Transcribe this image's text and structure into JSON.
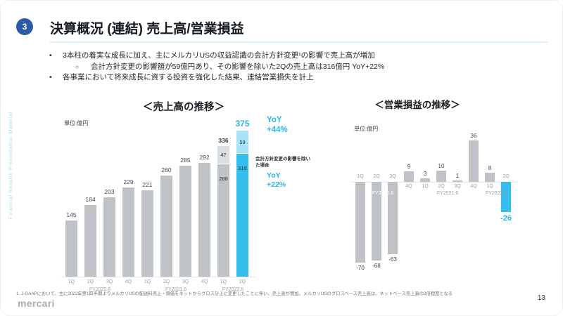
{
  "slide": {
    "badge": "3",
    "title": "決算概況 (連結) 売上高/営業損益",
    "bullets": {
      "b1": "3本柱の着実な成長に加え、主にメルカリUSの収益認識の会計方針変更¹の影響で売上高が増加",
      "b1_sub": "会計方針変更の影響額が59億円あり、その影響を除いた2Qの売上高は316億円 YoY+22%",
      "b2": "各事業において将来成長に資する投資を強化した結果、連結営業損失を計上"
    },
    "sidebar_text": "Financial Results Presentation Material",
    "footnote": "1. J-GAAPにおいて、主に2022年第1四半期よりメルカリUSの配送料売上・原価をネットからグロス計上に変更したことに伴い、売上高が増加。メルカリUSのグロスベース売上高は、ネットベース売上高の2倍程度となる",
    "page_number": "13",
    "logo_text": "mercari"
  },
  "colors": {
    "accent_cyan": "#29B6E8",
    "accent_cyan_light": "#A9E3F7",
    "bar_gray": "#BFC3C7",
    "bar_gray_light": "#DCDFE1",
    "badge_blue": "#2A5AA8"
  },
  "chart_data": [
    {
      "type": "bar",
      "title": "＜売上高の推移＞",
      "unit": "単位:億円",
      "categories": [
        "1Q",
        "2Q",
        "3Q",
        "4Q",
        "1Q",
        "2Q",
        "3Q",
        "4Q",
        "1Q",
        "2Q"
      ],
      "fiscal_years": [
        {
          "label": "FY2020.6",
          "span": 4
        },
        {
          "label": "FY2021.6",
          "span": 4
        },
        {
          "label": "FY2022.6",
          "span": 2
        }
      ],
      "stacked": true,
      "series": [
        {
          "name": "売上高",
          "values": [
            145,
            184,
            203,
            229,
            221,
            260,
            285,
            292,
            288,
            316
          ]
        },
        {
          "name": "会計方針変更の影響",
          "values": [
            0,
            0,
            0,
            0,
            0,
            0,
            0,
            0,
            47,
            59
          ]
        }
      ],
      "totals": [
        145,
        184,
        203,
        229,
        221,
        260,
        285,
        292,
        336,
        375
      ],
      "highlight_index": 9,
      "ylim": [
        0,
        400
      ],
      "legend": "off",
      "grid": "off",
      "annotations": {
        "yoy_label": "YoY",
        "yoy_value": "+44%",
        "ex_note": "会計方針変更の影響を除いた場合",
        "ex_yoy_label": "YoY",
        "ex_yoy_value": "+22%"
      }
    },
    {
      "type": "bar",
      "title": "＜営業損益の推移＞",
      "unit": "単位:億円",
      "categories": [
        "1Q",
        "2Q",
        "3Q",
        "4Q",
        "1Q",
        "2Q",
        "3Q",
        "4Q",
        "1Q",
        "2Q"
      ],
      "fiscal_years": [
        {
          "label": "FY2020.6",
          "span": 4
        },
        {
          "label": "FY2021.6",
          "span": 4
        },
        {
          "label": "FY2022.6",
          "span": 2
        }
      ],
      "values": [
        -70,
        -68,
        -63,
        9,
        3,
        10,
        1,
        36,
        8,
        -26
      ],
      "highlight_index": 9,
      "ylim": [
        -80,
        50
      ],
      "legend": "off",
      "grid": "off"
    }
  ]
}
